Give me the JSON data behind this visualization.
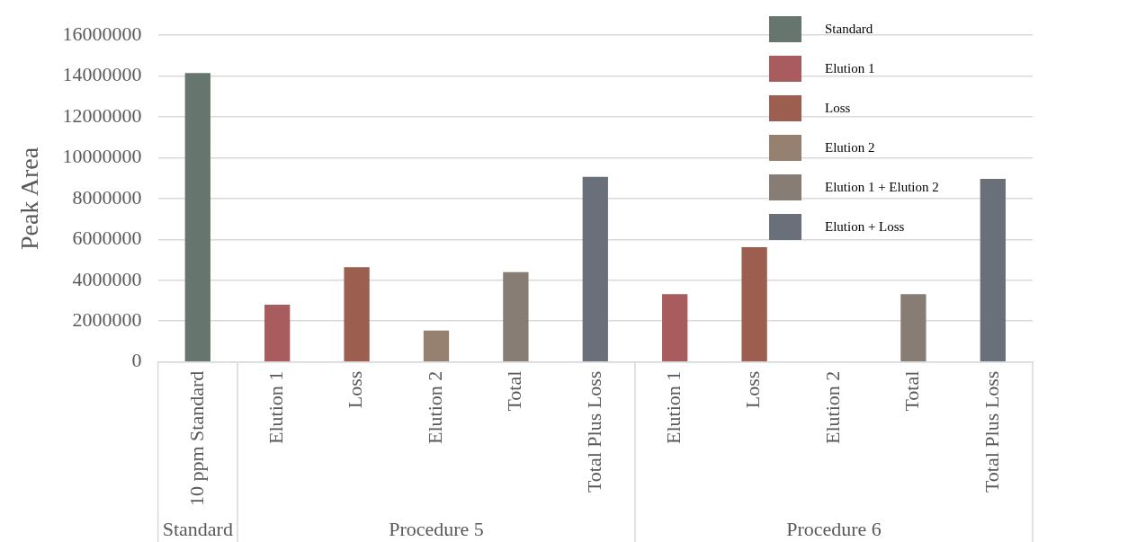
{
  "chart_data": {
    "type": "bar",
    "ylabel": "Peak Area",
    "categories": [
      "10 ppm Standard",
      "Elution 1",
      "Loss",
      "Elution 2",
      "Total",
      "Total Plus Loss",
      "Elution 1",
      "Loss",
      "Elution 2",
      "Total",
      "Total Plus Loss"
    ],
    "series": [
      {
        "name": "Standard",
        "color": "#67756f",
        "values": [
          14150000,
          null,
          null,
          null,
          null,
          null,
          null,
          null,
          null,
          null,
          null
        ]
      },
      {
        "name": "Elution 1",
        "color": "#a85c5d",
        "values": [
          null,
          2800000,
          null,
          null,
          null,
          null,
          3320000,
          null,
          null,
          null,
          null
        ]
      },
      {
        "name": "Loss",
        "color": "#9c5e4f",
        "values": [
          null,
          null,
          4640000,
          null,
          null,
          null,
          null,
          5620000,
          null,
          null,
          null
        ]
      },
      {
        "name": "Elution 2",
        "color": "#968070",
        "values": [
          null,
          null,
          null,
          1540000,
          null,
          null,
          null,
          null,
          null,
          null,
          null
        ]
      },
      {
        "name": "Elution 1 + Elution 2",
        "color": "#877d75",
        "values": [
          null,
          null,
          null,
          null,
          4400000,
          null,
          null,
          null,
          null,
          3320000,
          null
        ]
      },
      {
        "name": "Elution + Loss",
        "color": "#6a7079",
        "values": [
          null,
          null,
          null,
          null,
          null,
          9060000,
          null,
          null,
          null,
          null,
          8970000
        ]
      }
    ],
    "ylim": [
      0,
      16000000
    ],
    "yticks": [
      0,
      2000000,
      4000000,
      6000000,
      8000000,
      10000000,
      12000000,
      14000000,
      16000000
    ],
    "grid": "y",
    "legend": "top right",
    "annotations": [
      "Standard",
      "Procedure 5",
      "Procedure 6"
    ]
  }
}
